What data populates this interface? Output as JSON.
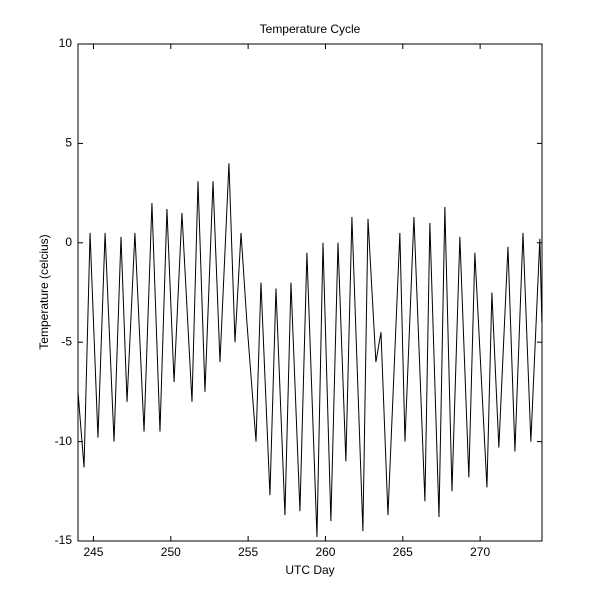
{
  "chart_data": {
    "type": "line",
    "title": "Temperature Cycle",
    "x_label": "UTC Day",
    "y_label": "Temperature (celcius)",
    "xlim": [
      244,
      274
    ],
    "xticks": [
      245,
      250,
      255,
      260,
      265,
      270
    ],
    "ylim": [
      -15,
      10
    ],
    "yticks": [
      -15,
      -10,
      -5,
      0,
      5,
      10
    ],
    "grid": false,
    "series": [
      {
        "name": "Temperature",
        "color": "#000000",
        "x": [
          244.0,
          244.39,
          244.78,
          245.29,
          245.75,
          246.33,
          246.78,
          247.17,
          247.68,
          248.27,
          248.78,
          249.3,
          249.75,
          250.21,
          250.72,
          251.37,
          251.76,
          252.21,
          252.73,
          253.18,
          253.76,
          254.15,
          254.54,
          254.92,
          255.51,
          255.83,
          256.41,
          256.8,
          257.38,
          257.77,
          258.35,
          258.8,
          259.45,
          259.84,
          260.35,
          260.81,
          261.32,
          261.71,
          262.42,
          262.75,
          263.26,
          263.59,
          264.04,
          264.81,
          265.14,
          265.72,
          266.43,
          266.75,
          267.34,
          267.72,
          268.18,
          268.69,
          269.27,
          269.66,
          270.44,
          270.76,
          271.21,
          271.8,
          272.25,
          272.77,
          273.28,
          273.86,
          273.99
        ],
        "values": [
          -7.5,
          -11.3,
          0.5,
          -9.8,
          0.5,
          -10,
          0.3,
          -8,
          0.5,
          -9.5,
          2,
          -9.5,
          1.7,
          -7,
          1.5,
          -8,
          3.1,
          -7.5,
          3.1,
          -6,
          4,
          -5,
          0.5,
          -4,
          -10,
          -2,
          -12.7,
          -2.3,
          -13.7,
          -2,
          -13.5,
          -0.5,
          -14.8,
          0,
          -14,
          0,
          -11,
          1.3,
          -14.5,
          1.2,
          -6,
          -4.5,
          -13.7,
          0.5,
          -10,
          1.3,
          -13,
          1,
          -13.8,
          1.8,
          -12.5,
          0.3,
          -11.8,
          -0.5,
          -12.3,
          -2.5,
          -10.3,
          -0.2,
          -10.5,
          0.5,
          -10,
          0.2,
          -4
        ]
      }
    ]
  }
}
